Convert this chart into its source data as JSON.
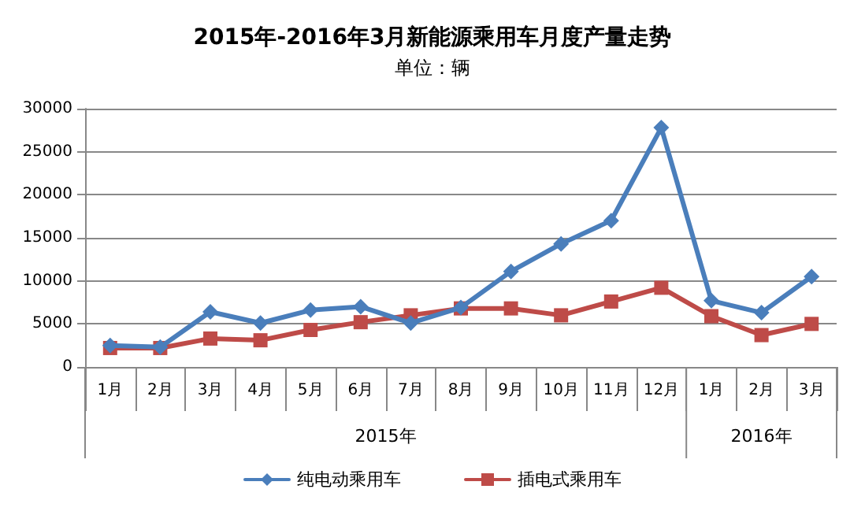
{
  "chart_data": {
    "type": "line",
    "title": "2015年-2016年3月新能源乘用车月度产量走势",
    "subtitle": "单位：辆",
    "categories": [
      "1月",
      "2月",
      "3月",
      "4月",
      "5月",
      "6月",
      "7月",
      "8月",
      "9月",
      "10月",
      "11月",
      "12月",
      "1月",
      "2月",
      "3月"
    ],
    "annotations": [
      "2015年",
      "2016年"
    ],
    "series": [
      {
        "name": "纯电动乘用车",
        "color": "#4a7ebb",
        "marker": "diamond",
        "values": [
          2500,
          2300,
          6400,
          5100,
          6600,
          7000,
          5100,
          6900,
          11100,
          14300,
          17000,
          27800,
          7700,
          6300,
          10500
        ]
      },
      {
        "name": "插电式乘用车",
        "color": "#be4b48",
        "marker": "square",
        "values": [
          2200,
          2200,
          3300,
          3100,
          4300,
          5200,
          6000,
          6800,
          6800,
          6000,
          7600,
          9200,
          5900,
          3700,
          5000
        ]
      }
    ],
    "ylim": [
      0,
      30000
    ],
    "yticks": [
      0,
      5000,
      10000,
      15000,
      20000,
      25000,
      30000
    ],
    "grid": "y",
    "legend": "bottom",
    "line_style": "solid"
  }
}
